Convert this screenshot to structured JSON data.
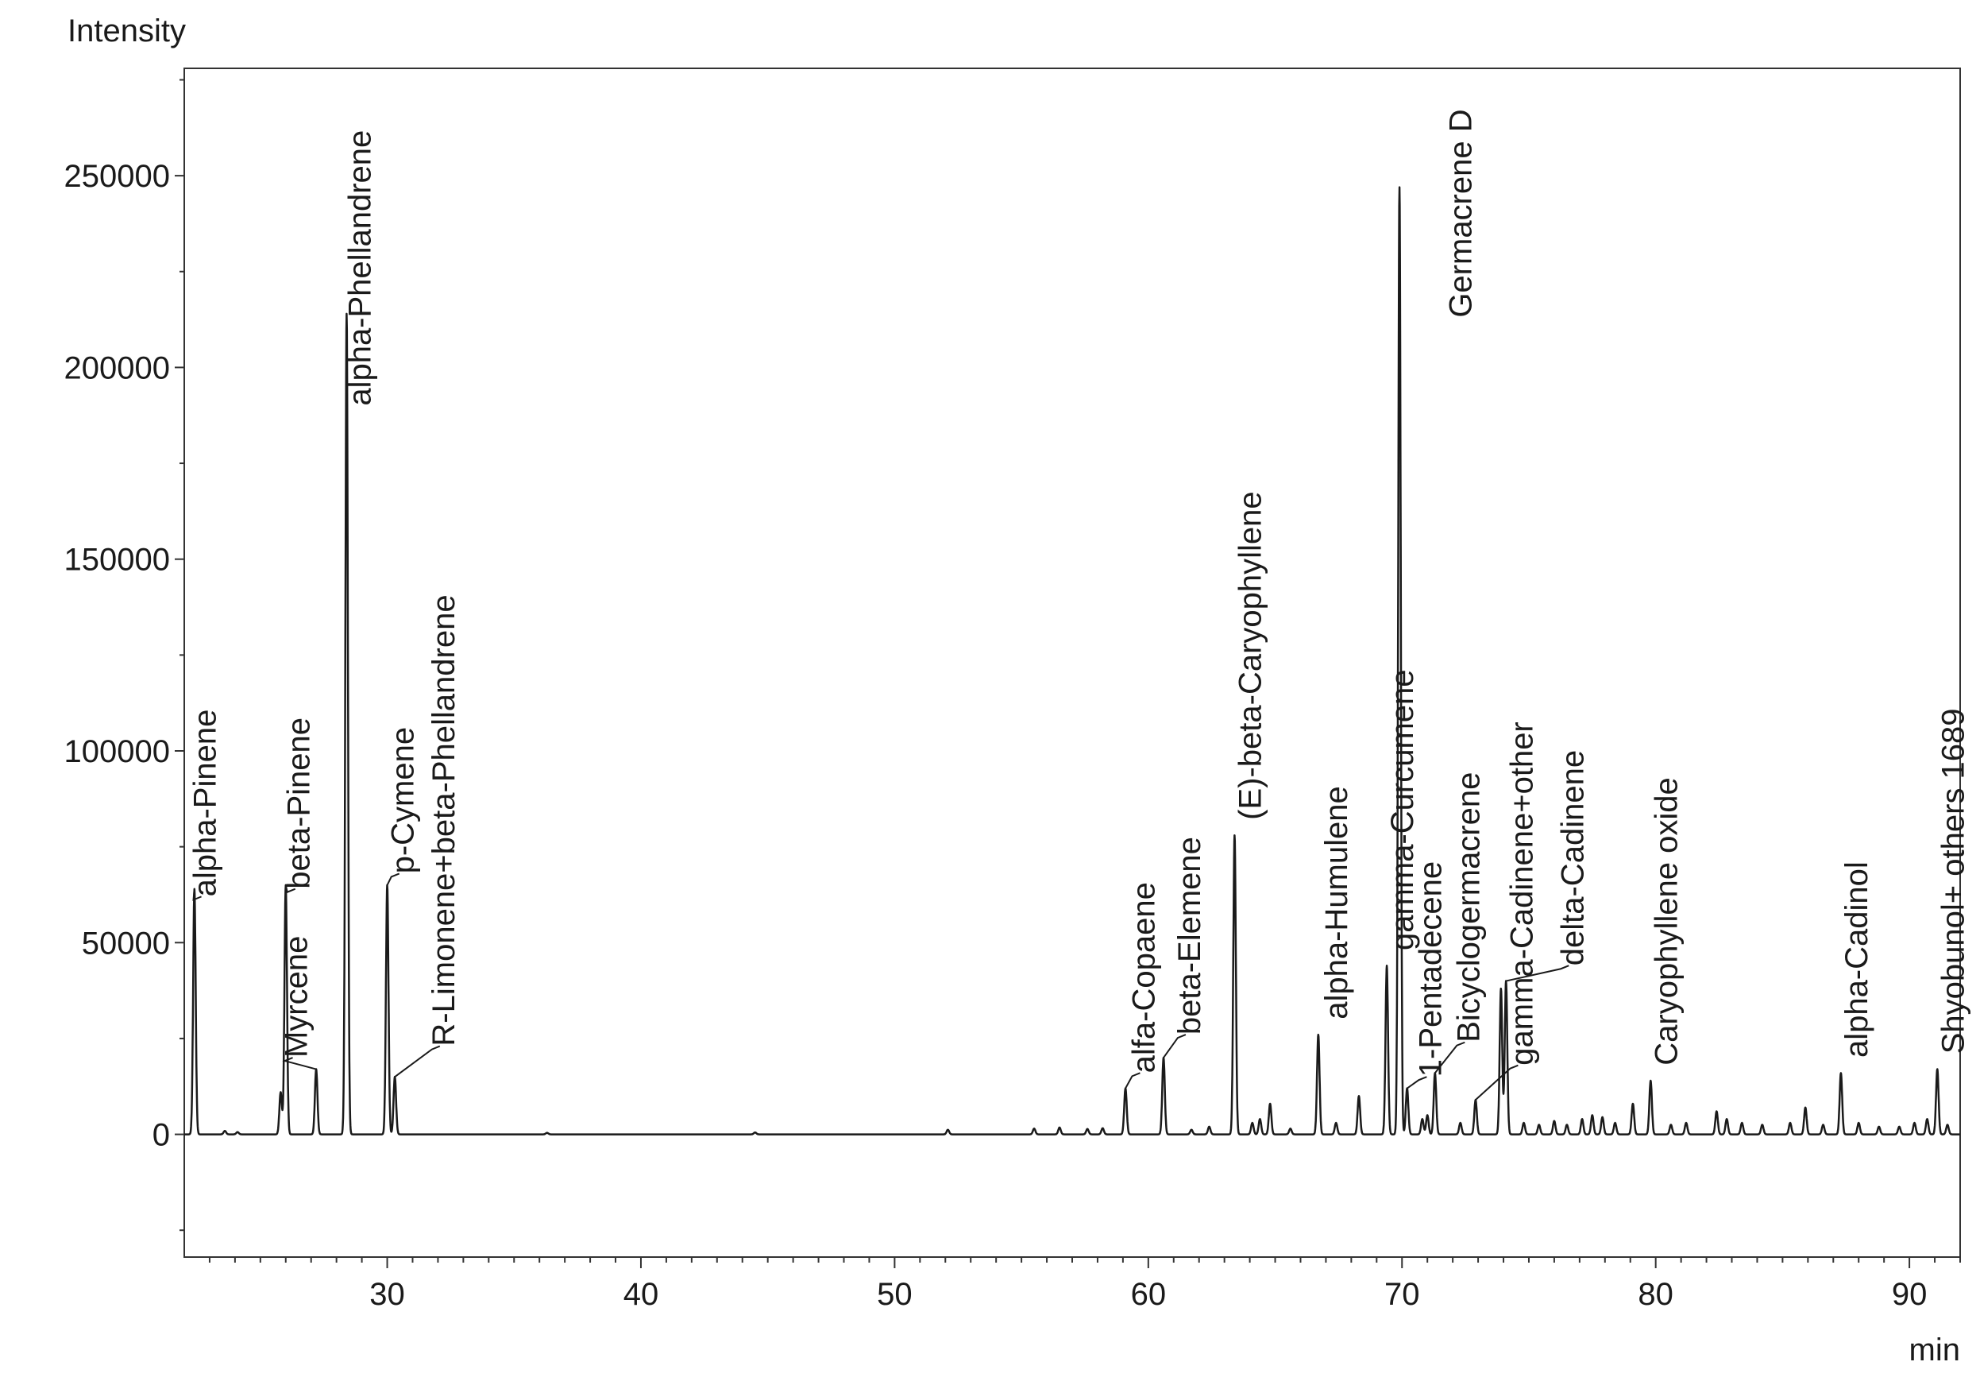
{
  "chart_data": {
    "type": "line",
    "title": "",
    "xlabel": "min",
    "ylabel": "Intensity",
    "xlim": [
      22,
      92
    ],
    "ylim": [
      -32000,
      278000
    ],
    "grid": false,
    "legend": "none",
    "x_ticks": [
      30,
      40,
      50,
      60,
      70,
      80,
      90
    ],
    "x_tick_labels": [
      "30",
      "40",
      "50",
      "60",
      "70",
      "80",
      "90"
    ],
    "y_ticks": [
      0,
      50000,
      100000,
      150000,
      200000,
      250000
    ],
    "y_tick_labels": [
      "0",
      "50000",
      "100000",
      "150000",
      "200000",
      "250000"
    ],
    "peaks": [
      {
        "x": 22.4,
        "y": 64000,
        "label": "alpha-Pinene"
      },
      {
        "x": 25.8,
        "y": 11000,
        "label": ""
      },
      {
        "x": 26.0,
        "y": 65000,
        "label": "beta-Pinene"
      },
      {
        "x": 27.2,
        "y": 17000,
        "label": "Myrcene"
      },
      {
        "x": 28.4,
        "y": 214000,
        "label": "alpha-Phellandrene"
      },
      {
        "x": 30.0,
        "y": 65000,
        "label": "p-Cymene"
      },
      {
        "x": 30.3,
        "y": 15000,
        "label": "R-Limonene+beta-Phellandrene"
      },
      {
        "x": 59.1,
        "y": 12000,
        "label": "alfa-Copaene"
      },
      {
        "x": 60.6,
        "y": 20000,
        "label": "beta-Elemene"
      },
      {
        "x": 63.4,
        "y": 78000,
        "label": "(E)-beta-Caryophyllene"
      },
      {
        "x": 64.8,
        "y": 8000,
        "label": ""
      },
      {
        "x": 66.7,
        "y": 26000,
        "label": "alpha-Humulene"
      },
      {
        "x": 68.3,
        "y": 10000,
        "label": ""
      },
      {
        "x": 69.4,
        "y": 44000,
        "label": "gamma-Curcumene"
      },
      {
        "x": 69.9,
        "y": 247000,
        "label": "Germacrene D"
      },
      {
        "x": 70.2,
        "y": 12000,
        "label": "1-Pentadecene"
      },
      {
        "x": 71.3,
        "y": 16000,
        "label": "Bicyclogermacrene"
      },
      {
        "x": 72.9,
        "y": 9000,
        "label": ""
      },
      {
        "x": 73.9,
        "y": 38000,
        "label": "gamma-Cadinene+other"
      },
      {
        "x": 74.1,
        "y": 40000,
        "label": "delta-Cadinene"
      },
      {
        "x": 79.1,
        "y": 8000,
        "label": ""
      },
      {
        "x": 79.8,
        "y": 14000,
        "label": "Caryophyllene oxide"
      },
      {
        "x": 82.4,
        "y": 6000,
        "label": ""
      },
      {
        "x": 85.9,
        "y": 7000,
        "label": ""
      },
      {
        "x": 87.3,
        "y": 16000,
        "label": "alpha-Cadinol"
      },
      {
        "x": 91.1,
        "y": 17000,
        "label": "Shyobunol+ others 1689"
      }
    ]
  }
}
